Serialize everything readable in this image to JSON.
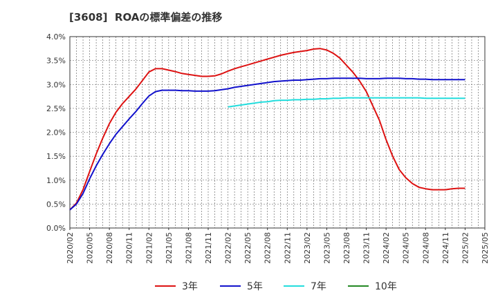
{
  "chart_data": {
    "type": "line",
    "title": "[3608]  ROAの標準偏差の推移",
    "xlabel": "",
    "ylabel": "",
    "x": [
      "2020/02",
      "2020/05",
      "2020/08",
      "2020/11",
      "2021/02",
      "2021/05",
      "2021/08",
      "2021/11",
      "2022/02",
      "2022/05",
      "2022/08",
      "2022/11",
      "2023/02",
      "2023/05",
      "2023/08",
      "2023/11",
      "2024/02",
      "2024/05",
      "2024/08",
      "2024/11",
      "2025/02",
      "2025/05"
    ],
    "ylim": [
      0,
      4.0
    ],
    "yticks": [
      "0.0%",
      "0.5%",
      "1.0%",
      "1.5%",
      "2.0%",
      "2.5%",
      "3.0%",
      "3.5%",
      "4.0%"
    ],
    "grid": true,
    "legend_position": "bottom",
    "series": [
      {
        "name": "3年",
        "color": "#dd1111",
        "points": [
          [
            "2020/02",
            0.38
          ],
          [
            "2020/03",
            0.52
          ],
          [
            "2020/04",
            0.8
          ],
          [
            "2020/05",
            1.18
          ],
          [
            "2020/06",
            1.55
          ],
          [
            "2020/07",
            1.88
          ],
          [
            "2020/08",
            2.18
          ],
          [
            "2020/09",
            2.42
          ],
          [
            "2020/10",
            2.6
          ],
          [
            "2020/11",
            2.75
          ],
          [
            "2020/12",
            2.9
          ],
          [
            "2021/01",
            3.08
          ],
          [
            "2021/02",
            3.26
          ],
          [
            "2021/03",
            3.33
          ],
          [
            "2021/04",
            3.33
          ],
          [
            "2021/05",
            3.3
          ],
          [
            "2021/06",
            3.27
          ],
          [
            "2021/07",
            3.23
          ],
          [
            "2021/08",
            3.21
          ],
          [
            "2021/09",
            3.19
          ],
          [
            "2021/10",
            3.17
          ],
          [
            "2021/11",
            3.17
          ],
          [
            "2021/12",
            3.18
          ],
          [
            "2022/01",
            3.22
          ],
          [
            "2022/02",
            3.28
          ],
          [
            "2022/03",
            3.33
          ],
          [
            "2022/04",
            3.37
          ],
          [
            "2022/05",
            3.41
          ],
          [
            "2022/06",
            3.45
          ],
          [
            "2022/07",
            3.49
          ],
          [
            "2022/08",
            3.53
          ],
          [
            "2022/09",
            3.57
          ],
          [
            "2022/10",
            3.61
          ],
          [
            "2022/11",
            3.64
          ],
          [
            "2022/12",
            3.67
          ],
          [
            "2023/01",
            3.69
          ],
          [
            "2023/02",
            3.71
          ],
          [
            "2023/03",
            3.74
          ],
          [
            "2023/04",
            3.75
          ],
          [
            "2023/05",
            3.72
          ],
          [
            "2023/06",
            3.65
          ],
          [
            "2023/07",
            3.55
          ],
          [
            "2023/08",
            3.4
          ],
          [
            "2023/09",
            3.25
          ],
          [
            "2023/10",
            3.07
          ],
          [
            "2023/11",
            2.85
          ],
          [
            "2023/12",
            2.55
          ],
          [
            "2024/01",
            2.25
          ],
          [
            "2024/02",
            1.85
          ],
          [
            "2024/03",
            1.5
          ],
          [
            "2024/04",
            1.22
          ],
          [
            "2024/05",
            1.05
          ],
          [
            "2024/06",
            0.93
          ],
          [
            "2024/07",
            0.85
          ],
          [
            "2024/08",
            0.82
          ],
          [
            "2024/09",
            0.8
          ],
          [
            "2024/10",
            0.8
          ],
          [
            "2024/11",
            0.8
          ],
          [
            "2024/12",
            0.82
          ],
          [
            "2025/01",
            0.83
          ],
          [
            "2025/02",
            0.83
          ]
        ]
      },
      {
        "name": "5年",
        "color": "#1111cc",
        "points": [
          [
            "2020/02",
            0.38
          ],
          [
            "2020/03",
            0.5
          ],
          [
            "2020/04",
            0.72
          ],
          [
            "2020/05",
            1.03
          ],
          [
            "2020/06",
            1.3
          ],
          [
            "2020/07",
            1.54
          ],
          [
            "2020/08",
            1.76
          ],
          [
            "2020/09",
            1.96
          ],
          [
            "2020/10",
            2.12
          ],
          [
            "2020/11",
            2.28
          ],
          [
            "2020/12",
            2.43
          ],
          [
            "2021/01",
            2.6
          ],
          [
            "2021/02",
            2.76
          ],
          [
            "2021/03",
            2.85
          ],
          [
            "2021/04",
            2.88
          ],
          [
            "2021/05",
            2.88
          ],
          [
            "2021/06",
            2.88
          ],
          [
            "2021/07",
            2.87
          ],
          [
            "2021/08",
            2.87
          ],
          [
            "2021/09",
            2.86
          ],
          [
            "2021/10",
            2.86
          ],
          [
            "2021/11",
            2.86
          ],
          [
            "2021/12",
            2.87
          ],
          [
            "2022/01",
            2.89
          ],
          [
            "2022/02",
            2.91
          ],
          [
            "2022/03",
            2.94
          ],
          [
            "2022/04",
            2.96
          ],
          [
            "2022/05",
            2.98
          ],
          [
            "2022/06",
            3.0
          ],
          [
            "2022/07",
            3.02
          ],
          [
            "2022/08",
            3.04
          ],
          [
            "2022/09",
            3.06
          ],
          [
            "2022/10",
            3.07
          ],
          [
            "2022/11",
            3.08
          ],
          [
            "2022/12",
            3.09
          ],
          [
            "2023/01",
            3.09
          ],
          [
            "2023/02",
            3.1
          ],
          [
            "2023/03",
            3.11
          ],
          [
            "2023/04",
            3.12
          ],
          [
            "2023/05",
            3.12
          ],
          [
            "2023/06",
            3.13
          ],
          [
            "2023/07",
            3.13
          ],
          [
            "2023/08",
            3.13
          ],
          [
            "2023/09",
            3.13
          ],
          [
            "2023/10",
            3.13
          ],
          [
            "2023/11",
            3.12
          ],
          [
            "2023/12",
            3.12
          ],
          [
            "2024/01",
            3.12
          ],
          [
            "2024/02",
            3.13
          ],
          [
            "2024/03",
            3.13
          ],
          [
            "2024/04",
            3.13
          ],
          [
            "2024/05",
            3.12
          ],
          [
            "2024/06",
            3.12
          ],
          [
            "2024/07",
            3.11
          ],
          [
            "2024/08",
            3.11
          ],
          [
            "2024/09",
            3.1
          ],
          [
            "2024/10",
            3.1
          ],
          [
            "2024/11",
            3.1
          ],
          [
            "2024/12",
            3.1
          ],
          [
            "2025/01",
            3.1
          ],
          [
            "2025/02",
            3.1
          ]
        ]
      },
      {
        "name": "7年",
        "color": "#22dddd",
        "points": [
          [
            "2022/02",
            2.53
          ],
          [
            "2022/03",
            2.55
          ],
          [
            "2022/04",
            2.57
          ],
          [
            "2022/05",
            2.59
          ],
          [
            "2022/06",
            2.61
          ],
          [
            "2022/07",
            2.63
          ],
          [
            "2022/08",
            2.64
          ],
          [
            "2022/09",
            2.66
          ],
          [
            "2022/10",
            2.67
          ],
          [
            "2022/11",
            2.67
          ],
          [
            "2022/12",
            2.68
          ],
          [
            "2023/01",
            2.68
          ],
          [
            "2023/02",
            2.69
          ],
          [
            "2023/03",
            2.69
          ],
          [
            "2023/04",
            2.7
          ],
          [
            "2023/05",
            2.7
          ],
          [
            "2023/06",
            2.71
          ],
          [
            "2023/07",
            2.71
          ],
          [
            "2023/08",
            2.72
          ],
          [
            "2023/09",
            2.72
          ],
          [
            "2023/10",
            2.72
          ],
          [
            "2023/11",
            2.72
          ],
          [
            "2023/12",
            2.72
          ],
          [
            "2024/01",
            2.72
          ],
          [
            "2024/02",
            2.72
          ],
          [
            "2024/03",
            2.72
          ],
          [
            "2024/04",
            2.72
          ],
          [
            "2024/05",
            2.72
          ],
          [
            "2024/06",
            2.72
          ],
          [
            "2024/07",
            2.72
          ],
          [
            "2024/08",
            2.71
          ],
          [
            "2024/09",
            2.71
          ],
          [
            "2024/10",
            2.71
          ],
          [
            "2024/11",
            2.71
          ],
          [
            "2024/12",
            2.71
          ],
          [
            "2025/01",
            2.71
          ],
          [
            "2025/02",
            2.71
          ]
        ]
      },
      {
        "name": "10年",
        "color": "#228822",
        "points": []
      }
    ]
  }
}
